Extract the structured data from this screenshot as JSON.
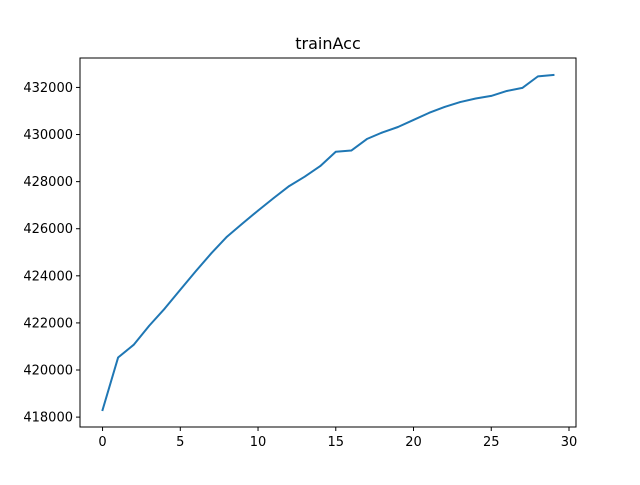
{
  "chart_data": {
    "type": "line",
    "title": "trainAcc",
    "xlabel": "",
    "ylabel": "",
    "xlim": [
      -1.45,
      30.45
    ],
    "ylim": [
      417580,
      433250
    ],
    "xticks": [
      0,
      5,
      10,
      15,
      20,
      25,
      30
    ],
    "yticks": [
      418000,
      420000,
      422000,
      424000,
      426000,
      428000,
      430000,
      432000
    ],
    "grid": false,
    "legend": "none",
    "series": [
      {
        "color": "#1f77b4",
        "x": [
          0,
          1,
          2,
          3,
          4,
          5,
          6,
          7,
          8,
          9,
          10,
          11,
          12,
          13,
          14,
          15,
          16,
          17,
          18,
          19,
          20,
          21,
          22,
          23,
          24,
          25,
          26,
          27,
          28,
          29
        ],
        "y": [
          418300,
          420530,
          421070,
          421880,
          422610,
          423410,
          424200,
          424960,
          425660,
          426220,
          426770,
          427300,
          427810,
          428210,
          428660,
          429270,
          429320,
          429810,
          430090,
          430320,
          430620,
          430920,
          431170,
          431380,
          431530,
          431640,
          431850,
          431980,
          432470,
          432530
        ]
      }
    ]
  }
}
